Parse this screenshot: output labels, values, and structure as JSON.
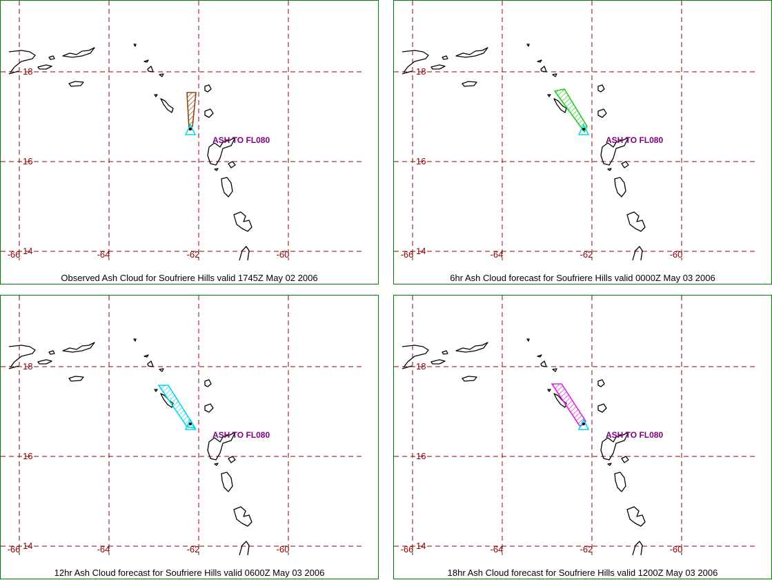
{
  "map": {
    "lon_labels": [
      "-66",
      "-64",
      "-62",
      "-60"
    ],
    "lat_labels": [
      "18",
      "16",
      "14"
    ],
    "grid_color": "#8b0000",
    "coast_color": "#000000",
    "border_color": "#007a00",
    "ash_label_color": "#800080"
  },
  "panels": [
    {
      "caption": "Observed Ash Cloud for Soufriere  Hills valid 1745Z May 02 2006",
      "label": "ASH TO FL080",
      "cloud_color": "#8b4513",
      "cloud_kind": "observed"
    },
    {
      "caption": "6hr Ash Cloud forecast for Soufriere  Hills valid 0000Z May 03 2006",
      "label": "ASH TO FL080",
      "cloud_color": "#22cc22",
      "cloud_kind": "forecast"
    },
    {
      "caption": "12hr Ash Cloud forecast for Soufriere  Hills valid 0600Z May 03 2006",
      "label": "ASH TO FL080",
      "cloud_color": "#00d8e8",
      "cloud_kind": "forecast"
    },
    {
      "caption": "18hr Ash Cloud forecast for Soufriere  Hills valid 1200Z May 03 2006",
      "label": "ASH TO FL080",
      "cloud_color": "#dd22dd",
      "cloud_kind": "forecast"
    }
  ]
}
